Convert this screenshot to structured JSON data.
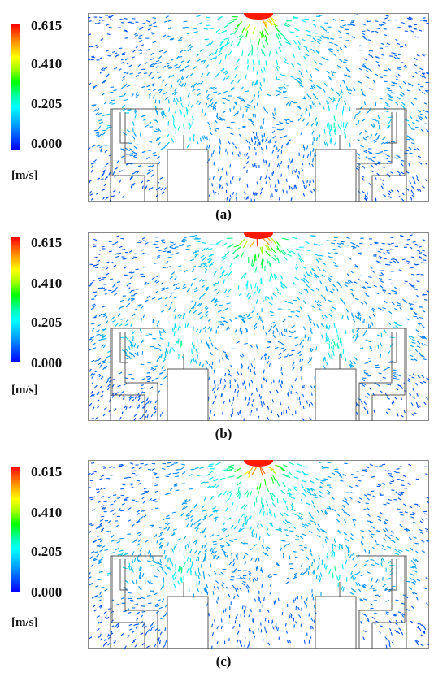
{
  "panels": [
    {
      "id": "a",
      "caption": "(a)",
      "seed": 11,
      "colorbar": {
        "ticks": [
          "0.615",
          "0.410",
          "0.205",
          "0.000"
        ],
        "unit": "[m/s]"
      }
    },
    {
      "id": "b",
      "caption": "(b)",
      "seed": 37,
      "colorbar": {
        "ticks": [
          "0.615",
          "0.410",
          "0.205",
          "0.000"
        ],
        "unit": "[m/s]"
      }
    },
    {
      "id": "c",
      "caption": "(c)",
      "seed": 73,
      "colorbar": {
        "ticks": [
          "0.615",
          "0.410",
          "0.205",
          "0.000"
        ],
        "unit": "[m/s]"
      }
    }
  ],
  "colors": {
    "high": "#ff0000",
    "mid_high": "#ffff00",
    "mid": "#00ff00",
    "mid_low": "#00ffff",
    "low": "#0000ff",
    "outline": "#555555"
  }
}
